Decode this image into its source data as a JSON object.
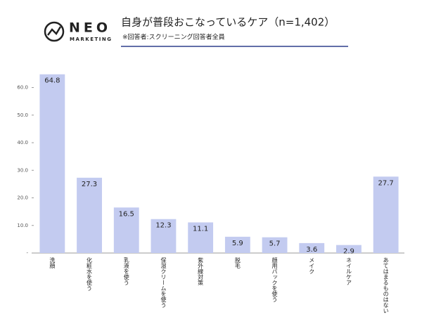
{
  "header": {
    "logo_name": "NEO",
    "logo_sub": "MARKETING"
  },
  "chart_data": {
    "type": "bar",
    "title": "自身が普段おこなっているケア（n=1,402）",
    "subtitle": "※回答者:スクリーニング回答者全員",
    "categories": [
      "洗顔",
      "化粧水を使う",
      "乳液を使う",
      "保湿クリームを使う",
      "紫外線対策",
      "脱毛",
      "顔用パックを使う",
      "メイク",
      "ネイルケア",
      "あてはまるものはない"
    ],
    "values": [
      64.8,
      27.3,
      16.5,
      12.3,
      11.1,
      5.9,
      5.7,
      3.6,
      2.9,
      27.7
    ],
    "color": "#c3cbf0",
    "ylim": [
      0,
      66
    ],
    "yticks": [
      {
        "value": 0,
        "label": "-"
      },
      {
        "value": 10,
        "label": "10.0"
      },
      {
        "value": 20,
        "label": "20.0"
      },
      {
        "value": 30,
        "label": "30.0"
      },
      {
        "value": 40,
        "label": "40.0"
      },
      {
        "value": 50,
        "label": "50.0"
      },
      {
        "value": 60,
        "label": "60.0"
      }
    ],
    "grid": false
  }
}
